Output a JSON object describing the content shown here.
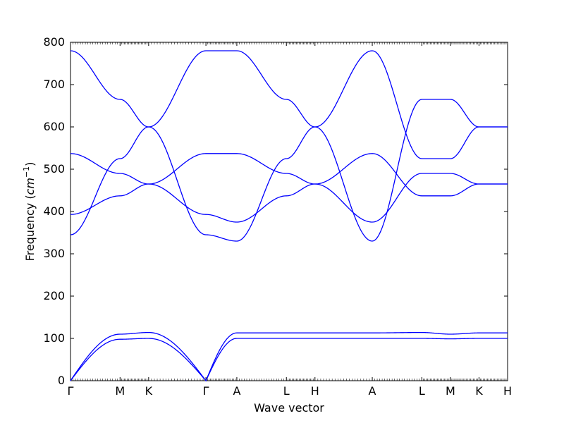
{
  "chart_data": {
    "type": "line",
    "xlabel": "Wave vector",
    "ylabel": "Frequency",
    "ylabel_unit": "cm",
    "ylabel_unit_exp": "−1",
    "ylim": [
      0,
      800
    ],
    "yticks": [
      0,
      100,
      200,
      300,
      400,
      500,
      600,
      700,
      800
    ],
    "grid": false,
    "line_color": "#0000ff",
    "high_symmetry_points": [
      "Γ",
      "M",
      "K",
      "Γ",
      "A",
      "L",
      "H",
      "A",
      "L",
      "M",
      "K",
      "H"
    ],
    "path_position": [
      0,
      0.577,
      0.91,
      1.577,
      1.937,
      2.514,
      2.847,
      3.514,
      4.091,
      4.424,
      4.757,
      5.09
    ],
    "series": [
      {
        "values": [
          0,
          98,
          100,
          0,
          100,
          100,
          100,
          100,
          100,
          99,
          100,
          100
        ]
      },
      {
        "values": [
          0,
          110,
          114,
          0,
          113,
          113,
          113,
          113,
          114,
          110,
          113,
          113
        ]
      },
      {
        "values": [
          345,
          525,
          600,
          780,
          780,
          665,
          600,
          330,
          665,
          665,
          600,
          600
        ]
      },
      {
        "values": [
          780,
          665,
          600,
          345,
          330,
          525,
          600,
          780,
          525,
          525,
          600,
          600
        ]
      },
      {
        "values": [
          393,
          437,
          465,
          537,
          537,
          490,
          465,
          375,
          490,
          490,
          465,
          465
        ]
      },
      {
        "values": [
          537,
          490,
          465,
          393,
          375,
          437,
          465,
          537,
          437,
          437,
          465,
          465
        ]
      }
    ]
  }
}
